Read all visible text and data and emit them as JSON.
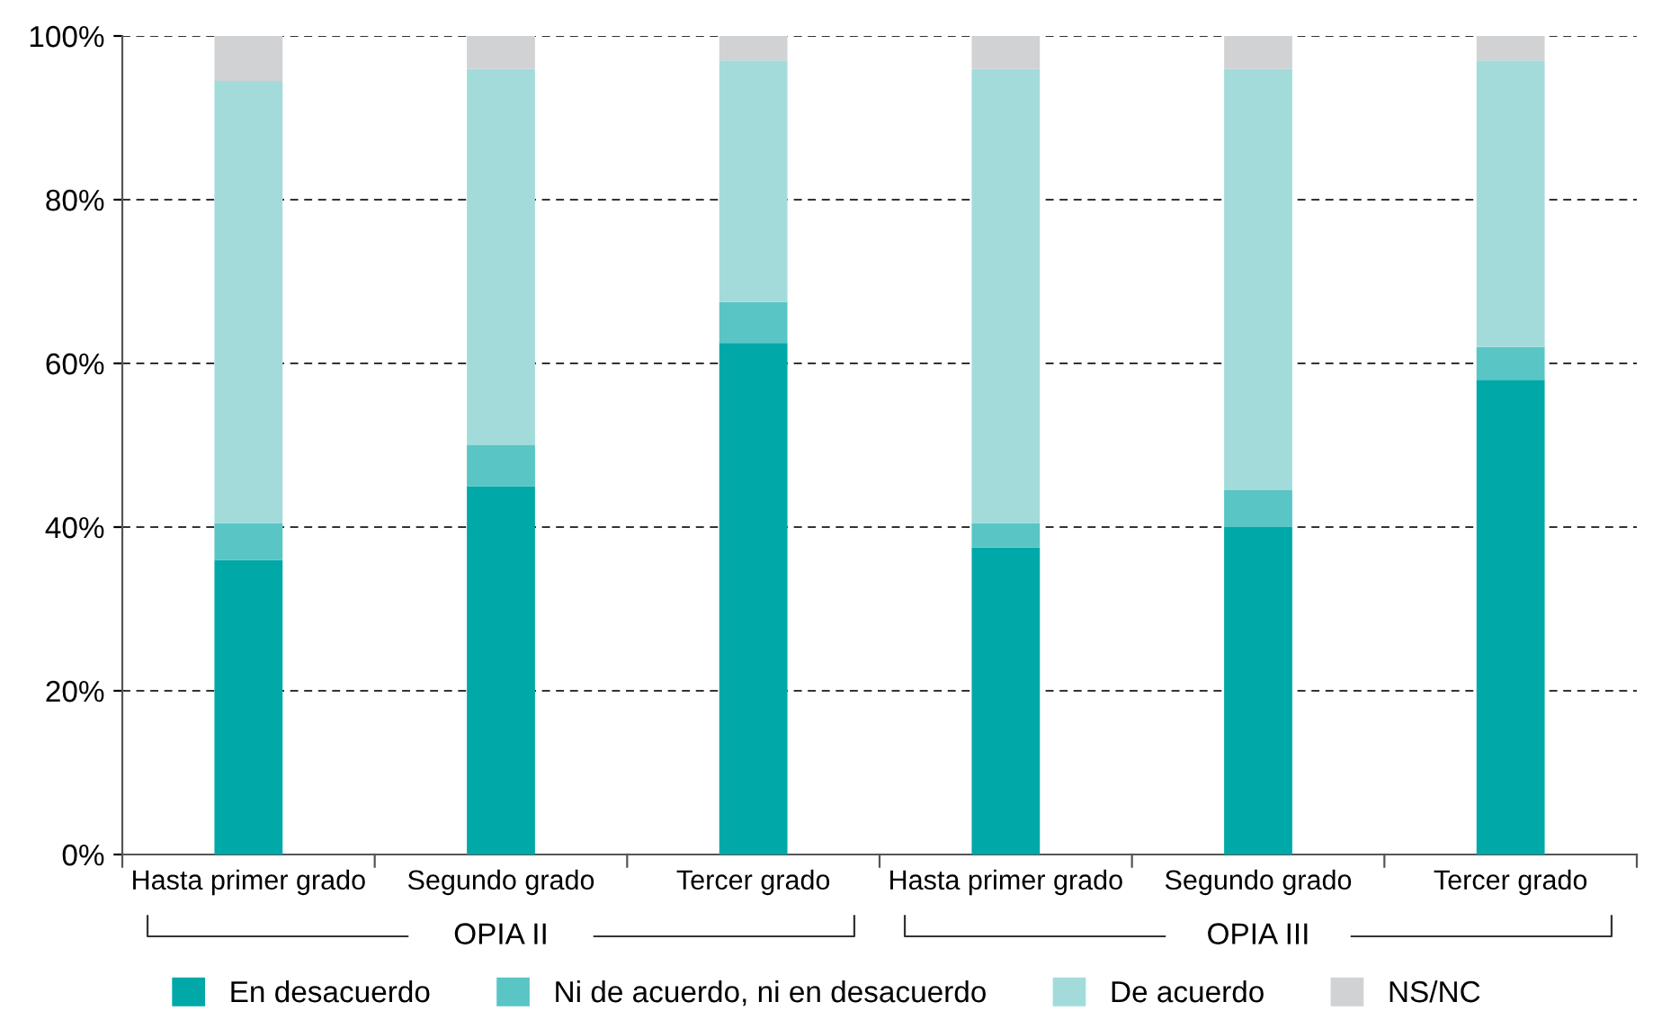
{
  "chart_data": {
    "type": "bar",
    "stacked": true,
    "categories": [
      "Hasta primer grado",
      "Segundo grado",
      "Tercer grado",
      "Hasta primer grado",
      "Segundo grado",
      "Tercer grado"
    ],
    "series": [
      {
        "name": "En desacuerdo",
        "color": "#00a8a8",
        "values": [
          36,
          45,
          62.5,
          37.5,
          40,
          58
        ]
      },
      {
        "name": "Ni de acuerdo, ni en desacuerdo",
        "color": "#59c5c5",
        "values": [
          4.5,
          5,
          5,
          3,
          4.5,
          4
        ]
      },
      {
        "name": "De acuerdo",
        "color": "#a3dbdb",
        "values": [
          54,
          46,
          29.5,
          55.5,
          51.5,
          35
        ]
      },
      {
        "name": "NS/NC",
        "color": "#d1d2d4",
        "values": [
          5.5,
          4,
          3,
          4,
          4,
          3
        ]
      }
    ],
    "ylim": [
      0,
      100
    ],
    "yticks": [
      {
        "value": 0,
        "label": "0%"
      },
      {
        "value": 20,
        "label": "20%"
      },
      {
        "value": 40,
        "label": "40%"
      },
      {
        "value": 60,
        "label": "60%"
      },
      {
        "value": 80,
        "label": "80%"
      },
      {
        "value": 100,
        "label": "100%"
      }
    ],
    "grid": "y",
    "legend": "bottom",
    "annotations": [
      "OPIA II",
      "OPIA III"
    ]
  }
}
